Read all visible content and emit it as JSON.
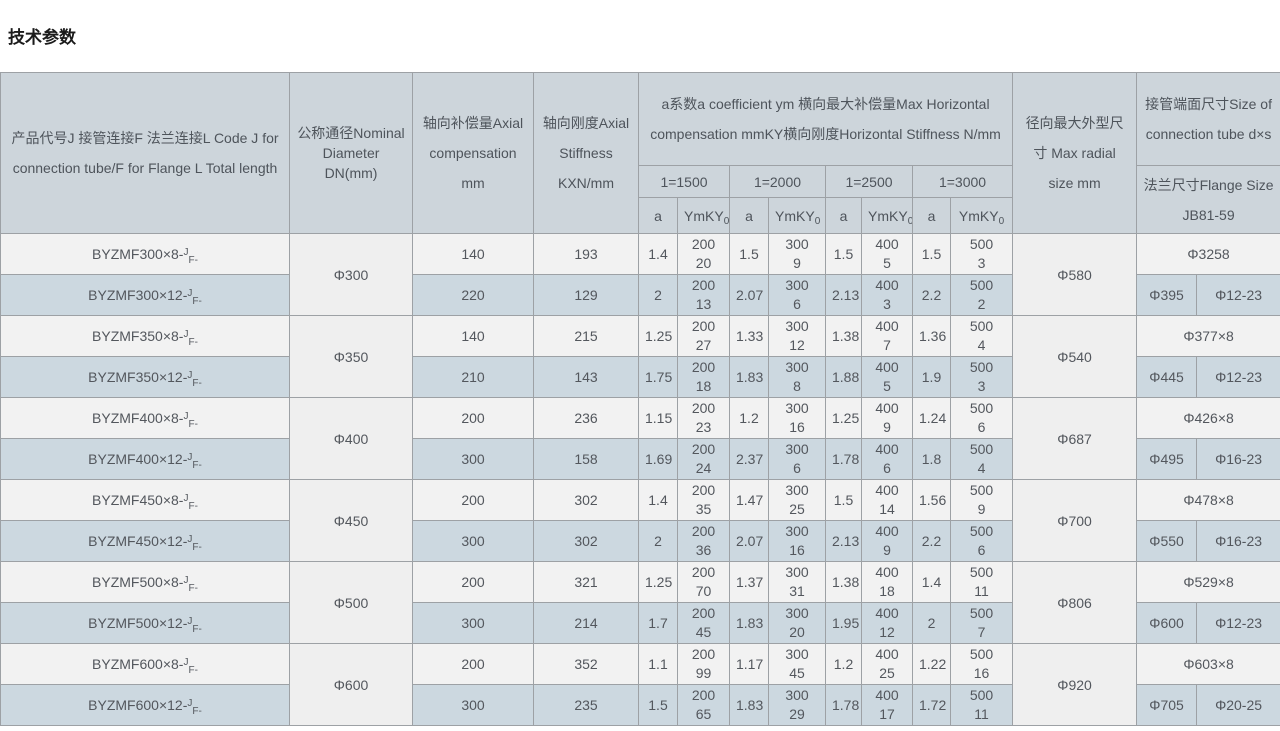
{
  "page": {
    "title": "技术参数"
  },
  "colors": {
    "header_bg": "#cdd5db",
    "row_light": "#f2f2f2",
    "row_blue": "#ccd8e0",
    "border": "#9da1a5"
  },
  "table": {
    "headers": {
      "code": "产品代号J 接管连接F 法兰连接L Code J for connection tube/F for Flange L Total length",
      "dn": "公称通径Nominal Diameter DN(mm)",
      "axial_comp": "轴向补偿量Axial compensation mm",
      "axial_stiff": "轴向刚度Axial Stiffness KXN/mm",
      "horizontal_group": "a系数a coefficient ym 横向最大补偿量Max Horizontal compensation mmKY横向刚度Horizontal Stiffness N/mm",
      "lengths": [
        "1=1500",
        "1=2000",
        "1=2500",
        "1=3000"
      ],
      "a_label": "a",
      "ymky_base": "YmKY",
      "ymky_sub": "0",
      "radial": "径向最大外型尺寸 Max radial size mm",
      "tube": "接管端面尺寸Size of connection tube d×s",
      "flange": "法兰尺寸Flange Size JB81-59"
    },
    "groups": [
      {
        "dn": "Φ300",
        "radial": "Φ580",
        "tube": "Φ3258",
        "flange_dia": "Φ395",
        "flange_bolt": "Φ12-23",
        "rows": [
          {
            "code_base": "BYZMF300×8-",
            "code_sup": "J",
            "code_sub": "F-",
            "comp": "140",
            "stiff": "193",
            "pairs": [
              [
                "1.4",
                "200",
                "20"
              ],
              [
                "1.5",
                "300",
                "9"
              ],
              [
                "1.5",
                "400",
                "5"
              ],
              [
                "1.5",
                "500",
                "3"
              ]
            ]
          },
          {
            "code_base": "BYZMF300×12-",
            "code_sup": "J",
            "code_sub": "F-",
            "comp": "220",
            "stiff": "129",
            "pairs": [
              [
                "2",
                "200",
                "13"
              ],
              [
                "2.07",
                "300",
                "6"
              ],
              [
                "2.13",
                "400",
                "3"
              ],
              [
                "2.2",
                "500",
                "2"
              ]
            ]
          }
        ]
      },
      {
        "dn": "Φ350",
        "radial": "Φ540",
        "tube": "Φ377×8",
        "flange_dia": "Φ445",
        "flange_bolt": "Φ12-23",
        "rows": [
          {
            "code_base": "BYZMF350×8-",
            "code_sup": "J",
            "code_sub": "F-",
            "comp": "140",
            "stiff": "215",
            "pairs": [
              [
                "1.25",
                "200",
                "27"
              ],
              [
                "1.33",
                "300",
                "12"
              ],
              [
                "1.38",
                "400",
                "7"
              ],
              [
                "1.36",
                "500",
                "4"
              ]
            ]
          },
          {
            "code_base": "BYZMF350×12-",
            "code_sup": "J",
            "code_sub": "F-",
            "comp": "210",
            "stiff": "143",
            "pairs": [
              [
                "1.75",
                "200",
                "18"
              ],
              [
                "1.83",
                "300",
                "8"
              ],
              [
                "1.88",
                "400",
                "5"
              ],
              [
                "1.9",
                "500",
                "3"
              ]
            ]
          }
        ]
      },
      {
        "dn": "Φ400",
        "radial": "Φ687",
        "tube": "Φ426×8",
        "flange_dia": "Φ495",
        "flange_bolt": "Φ16-23",
        "rows": [
          {
            "code_base": "BYZMF400×8-",
            "code_sup": "J",
            "code_sub": "F-",
            "comp": "200",
            "stiff": "236",
            "pairs": [
              [
                "1.15",
                "200",
                "23"
              ],
              [
                "1.2",
                "300",
                "16"
              ],
              [
                "1.25",
                "400",
                "9"
              ],
              [
                "1.24",
                "500",
                "6"
              ]
            ]
          },
          {
            "code_base": "BYZMF400×12-",
            "code_sup": "J",
            "code_sub": "F-",
            "comp": "300",
            "stiff": "158",
            "pairs": [
              [
                "1.69",
                "200",
                "24"
              ],
              [
                "2.37",
                "300",
                "6"
              ],
              [
                "1.78",
                "400",
                "6"
              ],
              [
                "1.8",
                "500",
                "4"
              ]
            ]
          }
        ]
      },
      {
        "dn": "Φ450",
        "radial": "Φ700",
        "tube": "Φ478×8",
        "flange_dia": "Φ550",
        "flange_bolt": "Φ16-23",
        "rows": [
          {
            "code_base": "BYZMF450×8-",
            "code_sup": "J",
            "code_sub": "F-",
            "comp": "200",
            "stiff": "302",
            "pairs": [
              [
                "1.4",
                "200",
                "35"
              ],
              [
                "1.47",
                "300",
                "25"
              ],
              [
                "1.5",
                "400",
                "14"
              ],
              [
                "1.56",
                "500",
                "9"
              ]
            ]
          },
          {
            "code_base": "BYZMF450×12-",
            "code_sup": "J",
            "code_sub": "F-",
            "comp": "300",
            "stiff": "302",
            "pairs": [
              [
                "2",
                "200",
                "36"
              ],
              [
                "2.07",
                "300",
                "16"
              ],
              [
                "2.13",
                "400",
                "9"
              ],
              [
                "2.2",
                "500",
                "6"
              ]
            ]
          }
        ]
      },
      {
        "dn": "Φ500",
        "radial": "Φ806",
        "tube": "Φ529×8",
        "flange_dia": "Φ600",
        "flange_bolt": "Φ12-23",
        "rows": [
          {
            "code_base": "BYZMF500×8-",
            "code_sup": "J",
            "code_sub": "F-",
            "comp": "200",
            "stiff": "321",
            "pairs": [
              [
                "1.25",
                "200",
                "70"
              ],
              [
                "1.37",
                "300",
                "31"
              ],
              [
                "1.38",
                "400",
                "18"
              ],
              [
                "1.4",
                "500",
                "11"
              ]
            ]
          },
          {
            "code_base": "BYZMF500×12-",
            "code_sup": "J",
            "code_sub": "F-",
            "comp": "300",
            "stiff": "214",
            "pairs": [
              [
                "1.7",
                "200",
                "45"
              ],
              [
                "1.83",
                "300",
                "20"
              ],
              [
                "1.95",
                "400",
                "12"
              ],
              [
                "2",
                "500",
                "7"
              ]
            ]
          }
        ]
      },
      {
        "dn": "Φ600",
        "radial": "Φ920",
        "tube": "Φ603×8",
        "flange_dia": "Φ705",
        "flange_bolt": "Φ20-25",
        "rows": [
          {
            "code_base": "BYZMF600×8-",
            "code_sup": "J",
            "code_sub": "F-",
            "comp": "200",
            "stiff": "352",
            "pairs": [
              [
                "1.1",
                "200",
                "99"
              ],
              [
                "1.17",
                "300",
                "45"
              ],
              [
                "1.2",
                "400",
                "25"
              ],
              [
                "1.22",
                "500",
                "16"
              ]
            ]
          },
          {
            "code_base": "BYZMF600×12-",
            "code_sup": "J",
            "code_sub": "F-",
            "comp": "300",
            "stiff": "235",
            "pairs": [
              [
                "1.5",
                "200",
                "65"
              ],
              [
                "1.83",
                "300",
                "29"
              ],
              [
                "1.78",
                "400",
                "17"
              ],
              [
                "1.72",
                "500",
                "11"
              ]
            ]
          }
        ]
      }
    ]
  }
}
